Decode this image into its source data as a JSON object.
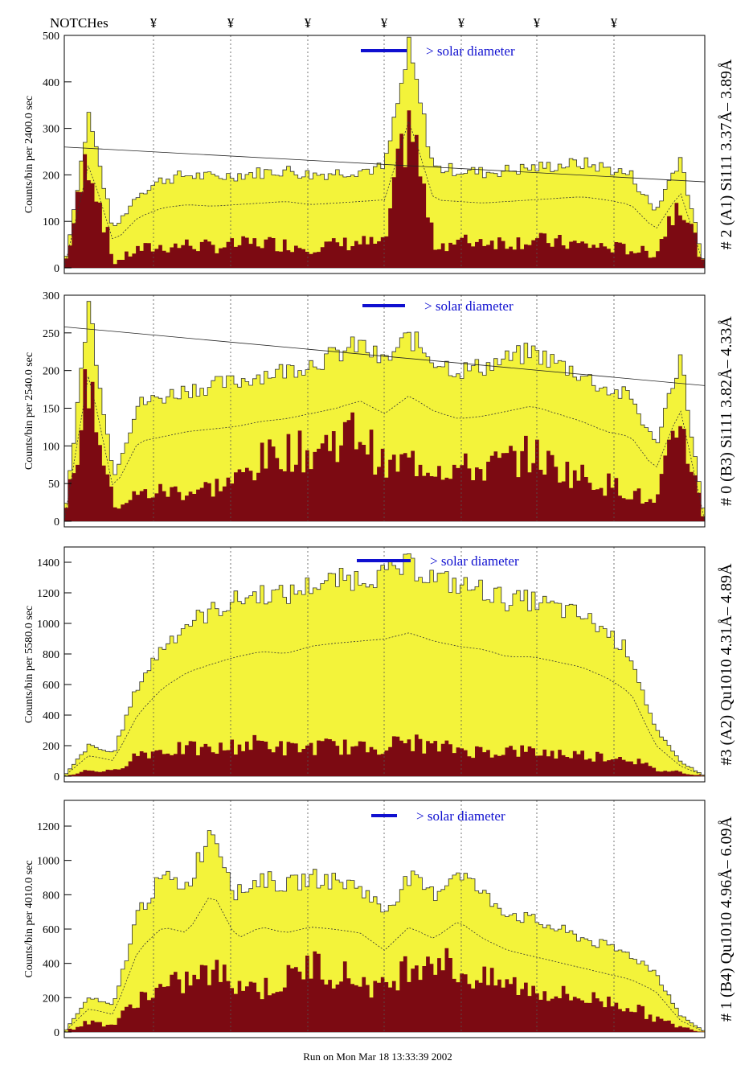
{
  "header": {
    "notches_label": "NOTCHes",
    "notch_symbol": "¥",
    "notch_count": 7
  },
  "footer": {
    "run_text": "Run on Mon Mar 18 13:33:39 2002"
  },
  "colors": {
    "yellow": "#f3f33a",
    "dark": "#7c0a12",
    "blue": "#1010d0"
  },
  "chart_data": [
    {
      "type": "area",
      "ylabel": "Counts/bin per  2400.0 sec",
      "right_label": "# 2 (A1) Si111  3.37Å– 3.89Å",
      "solar_label": "> solar diameter",
      "ylim": [
        0,
        500
      ],
      "yticks": [
        0,
        100,
        200,
        300,
        400,
        500
      ],
      "yellow_profile": [
        0,
        330,
        80,
        160,
        190,
        200,
        195,
        200,
        205,
        210,
        200,
        205,
        210,
        215,
        470,
        215,
        210,
        205,
        210,
        215,
        220,
        225,
        215,
        200,
        120,
        240,
        0
      ],
      "dark_profile": [
        0,
        250,
        10,
        40,
        45,
        50,
        45,
        50,
        55,
        50,
        45,
        50,
        55,
        50,
        330,
        50,
        55,
        60,
        55,
        60,
        55,
        50,
        45,
        40,
        30,
        160,
        0
      ],
      "trend_line": [
        260,
        185
      ]
    },
    {
      "type": "area",
      "ylabel": "Counts/bin per  2540.0 sec",
      "right_label": "# 0 (B3) Si111  3.82Å– 4.33Å",
      "solar_label": "> solar diameter",
      "ylim": [
        0,
        300
      ],
      "yticks": [
        0,
        50,
        100,
        150,
        200,
        250,
        300
      ],
      "yellow_profile": [
        0,
        290,
        60,
        155,
        165,
        175,
        180,
        185,
        195,
        200,
        210,
        220,
        235,
        210,
        245,
        215,
        200,
        205,
        215,
        225,
        210,
        195,
        175,
        165,
        100,
        220,
        0
      ],
      "dark_profile": [
        0,
        190,
        20,
        35,
        40,
        40,
        45,
        55,
        80,
        95,
        90,
        110,
        120,
        70,
        80,
        75,
        70,
        70,
        80,
        90,
        70,
        60,
        50,
        40,
        20,
        140,
        0
      ],
      "trend_line": [
        258,
        180
      ]
    },
    {
      "type": "area",
      "ylabel": "Counts/bin per  5580.0 sec",
      "right_label": "#3 (A2) Qu1010  4.31Å– 4.89Å",
      "solar_label": "> solar diameter",
      "ylim": [
        0,
        1500
      ],
      "yticks": [
        0,
        200,
        400,
        600,
        800,
        1000,
        1200,
        1400
      ],
      "yellow_profile": [
        0,
        200,
        150,
        600,
        850,
        1000,
        1080,
        1150,
        1200,
        1180,
        1250,
        1280,
        1300,
        1320,
        1380,
        1300,
        1250,
        1220,
        1150,
        1150,
        1100,
        1050,
        950,
        800,
        300,
        100,
        0
      ],
      "dark_profile": [
        0,
        40,
        30,
        150,
        170,
        180,
        170,
        200,
        220,
        180,
        190,
        200,
        180,
        200,
        230,
        190,
        180,
        160,
        170,
        160,
        150,
        140,
        130,
        120,
        40,
        30,
        0
      ],
      "trend_line": null
    },
    {
      "type": "area",
      "ylabel": "Counts/bin per  4010.0 sec",
      "right_label": "# 1 (B4) Qu1010 4.96Å– 6.09Å",
      "solar_label": "> solar diameter",
      "ylim": [
        0,
        1350
      ],
      "yticks": [
        0,
        200,
        400,
        600,
        800,
        1000,
        1200
      ],
      "yellow_profile": [
        0,
        200,
        150,
        700,
        900,
        850,
        1200,
        800,
        900,
        850,
        900,
        880,
        850,
        700,
        900,
        800,
        950,
        800,
        700,
        650,
        600,
        550,
        500,
        450,
        350,
        100,
        0
      ],
      "dark_profile": [
        0,
        60,
        40,
        200,
        250,
        300,
        350,
        300,
        250,
        300,
        400,
        350,
        300,
        250,
        400,
        450,
        350,
        300,
        280,
        250,
        220,
        200,
        180,
        150,
        80,
        30,
        0
      ],
      "trend_line": null
    }
  ]
}
